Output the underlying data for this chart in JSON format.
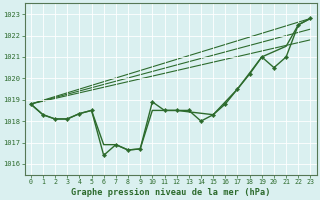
{
  "title": "Graphe pression niveau de la mer (hPa)",
  "bg_color": "#cce8d0",
  "plot_bg_color": "#daf0f0",
  "grid_color": "#b0d8d8",
  "line_color": "#2d6b2d",
  "xlim": [
    -0.5,
    23.5
  ],
  "ylim": [
    1015.5,
    1023.5
  ],
  "yticks": [
    1016,
    1017,
    1018,
    1019,
    1020,
    1021,
    1022,
    1023
  ],
  "xticks": [
    0,
    1,
    2,
    3,
    4,
    5,
    6,
    7,
    8,
    9,
    10,
    11,
    12,
    13,
    14,
    15,
    16,
    17,
    18,
    19,
    20,
    21,
    22,
    23
  ],
  "series_main": {
    "x": [
      0,
      1,
      2,
      3,
      4,
      5,
      6,
      7,
      8,
      9,
      10,
      11,
      12,
      13,
      14,
      15,
      16,
      17,
      18,
      19,
      20,
      21,
      22,
      23
    ],
    "y": [
      1018.8,
      1018.3,
      1018.1,
      1018.1,
      1018.35,
      1018.5,
      1016.4,
      1016.9,
      1016.65,
      1016.7,
      1018.9,
      1018.5,
      1018.5,
      1018.5,
      1018.0,
      1018.3,
      1018.8,
      1019.5,
      1020.2,
      1021.0,
      1020.5,
      1021.0,
      1022.5,
      1022.8
    ]
  },
  "series_smooth": {
    "x": [
      0,
      1,
      2,
      3,
      4,
      5,
      6,
      7,
      8,
      9,
      10,
      11,
      12,
      15,
      17,
      19,
      21,
      22,
      23
    ],
    "y": [
      1018.8,
      1018.3,
      1018.1,
      1018.1,
      1018.35,
      1018.5,
      1016.9,
      1016.9,
      1016.65,
      1016.7,
      1018.5,
      1018.5,
      1018.5,
      1018.3,
      1019.5,
      1021.0,
      1021.5,
      1022.5,
      1022.8
    ]
  },
  "trend1": {
    "x": [
      0,
      23
    ],
    "y": [
      1018.8,
      1022.8
    ]
  },
  "trend2": {
    "x": [
      0,
      23
    ],
    "y": [
      1018.8,
      1022.3
    ]
  },
  "trend3": {
    "x": [
      0,
      23
    ],
    "y": [
      1018.8,
      1021.8
    ]
  }
}
